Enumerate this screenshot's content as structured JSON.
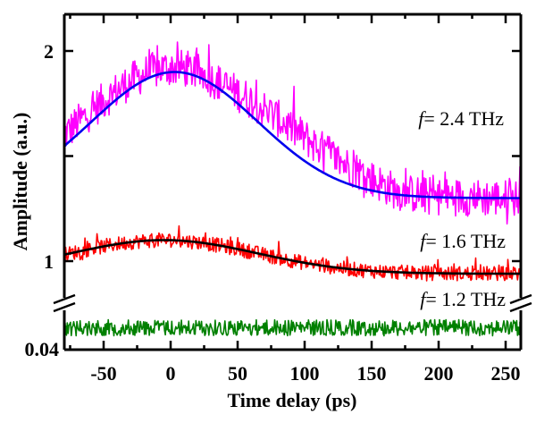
{
  "chart_data": {
    "type": "line",
    "title": "",
    "xlabel": "Time delay (ps)",
    "ylabel": "Amplitude (a.u.)",
    "xlim": [
      -80,
      262
    ],
    "ylim_upper": [
      0.855,
      2.2
    ],
    "ylim_lower_segment_bottom": 0.04,
    "axis_break": true,
    "grid": false,
    "legend": "none",
    "x_ticks": [
      -50,
      0,
      50,
      100,
      150,
      200,
      250
    ],
    "x_tick_labels": [
      "-50",
      "0",
      "50",
      "100",
      "150",
      "200",
      "250"
    ],
    "y_ticks": [
      1,
      1.5,
      2
    ],
    "y_tick_labels": [
      "1",
      "",
      "2"
    ],
    "y_break_tick_label": "0.04",
    "annotations": [
      {
        "prefix": "f",
        "text": "= 2.4 THz",
        "series": "2.4 THz data"
      },
      {
        "prefix": "f",
        "text": "= 1.6 THz",
        "series": "1.6 THz data"
      },
      {
        "prefix": "f",
        "text": "= 1.2 THz",
        "series": "1.2 THz data"
      }
    ],
    "series": [
      {
        "name": "2.4 THz data",
        "color": "#ff00ff",
        "kind": "noisy",
        "model": {
          "baseline": 1.3,
          "amplitude": 0.62,
          "center": 2,
          "sigma": 68
        },
        "noise_amplitude": 0.09,
        "x_range": [
          -80,
          262
        ]
      },
      {
        "name": "2.4 THz fit",
        "color": "#0000ee",
        "kind": "fit",
        "model": {
          "baseline": 1.3,
          "amplitude": 0.6,
          "center": 3,
          "sigma": 62
        },
        "x_range": [
          -80,
          262
        ]
      },
      {
        "name": "1.6 THz data",
        "color": "#ff0000",
        "kind": "noisy",
        "model": {
          "baseline": 0.94,
          "amplitude": 0.16,
          "center": -5,
          "sigma": 70
        },
        "noise_amplitude": 0.035,
        "x_range": [
          -80,
          262
        ]
      },
      {
        "name": "1.6 THz fit",
        "color": "#000000",
        "kind": "fit",
        "model": {
          "baseline": 0.94,
          "amplitude": 0.16,
          "center": -5,
          "sigma": 70
        },
        "x_range": [
          -80,
          262
        ]
      },
      {
        "name": "1.2 THz data",
        "color": "#008000",
        "kind": "noisy-lower",
        "level_fraction_of_lower_segment": 0.55,
        "noise_fraction": 0.22,
        "x_range": [
          -80,
          262
        ]
      }
    ]
  }
}
